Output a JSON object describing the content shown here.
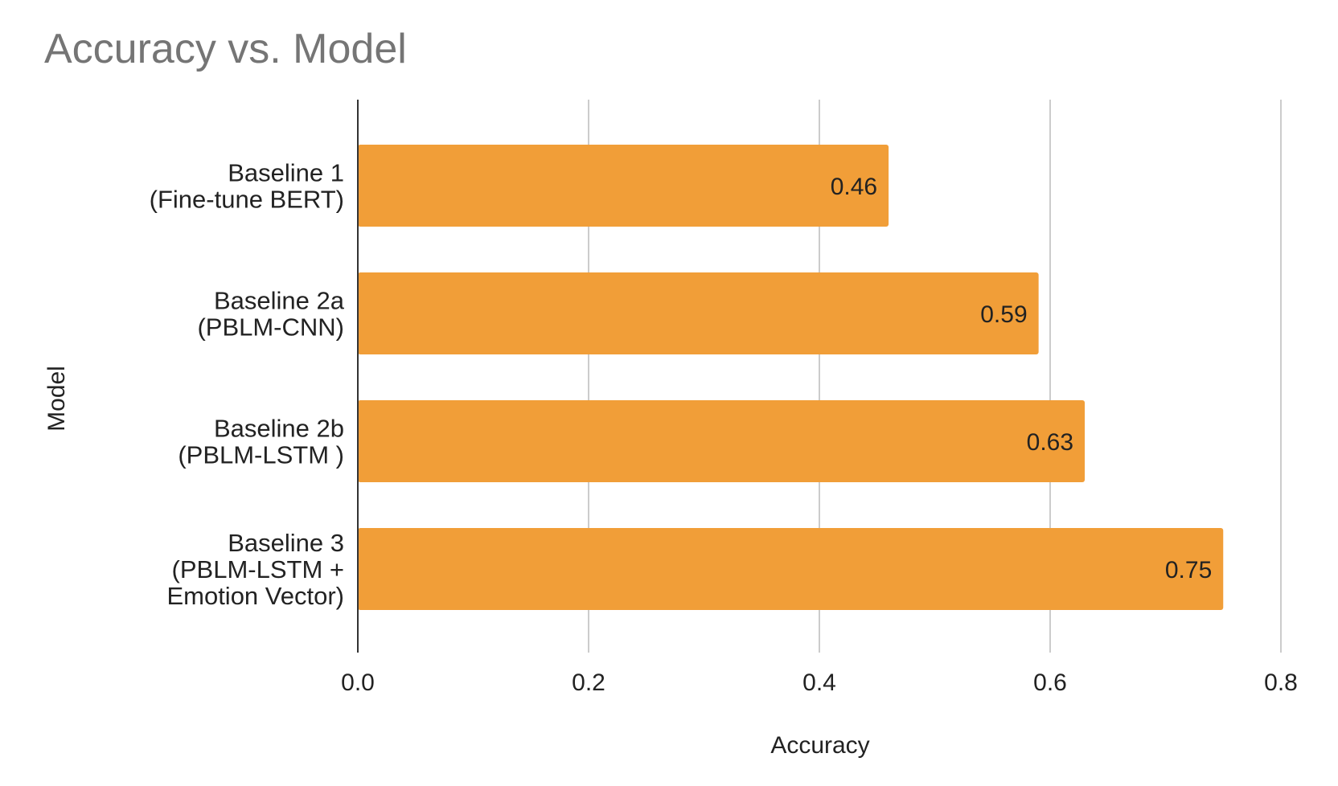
{
  "chart_data": {
    "type": "bar",
    "orientation": "horizontal",
    "title": "Accuracy vs. Model",
    "xlabel": "Accuracy",
    "ylabel": "Model",
    "xlim": [
      0,
      0.8
    ],
    "xticks": [
      "0.0",
      "0.2",
      "0.4",
      "0.6",
      "0.8"
    ],
    "grid": true,
    "legend": "none",
    "bar_color": "#F19E38",
    "categories": [
      [
        "Baseline 1",
        "(Fine-tune BERT)"
      ],
      [
        "Baseline 2a",
        "(PBLM-CNN)"
      ],
      [
        "Baseline 2b",
        "(PBLM-LSTM )"
      ],
      [
        "Baseline 3",
        "(PBLM-LSTM +",
        "Emotion Vector)"
      ]
    ],
    "values": [
      0.46,
      0.59,
      0.63,
      0.75
    ],
    "data_labels": [
      "0.46",
      "0.59",
      "0.63",
      "0.75"
    ]
  }
}
